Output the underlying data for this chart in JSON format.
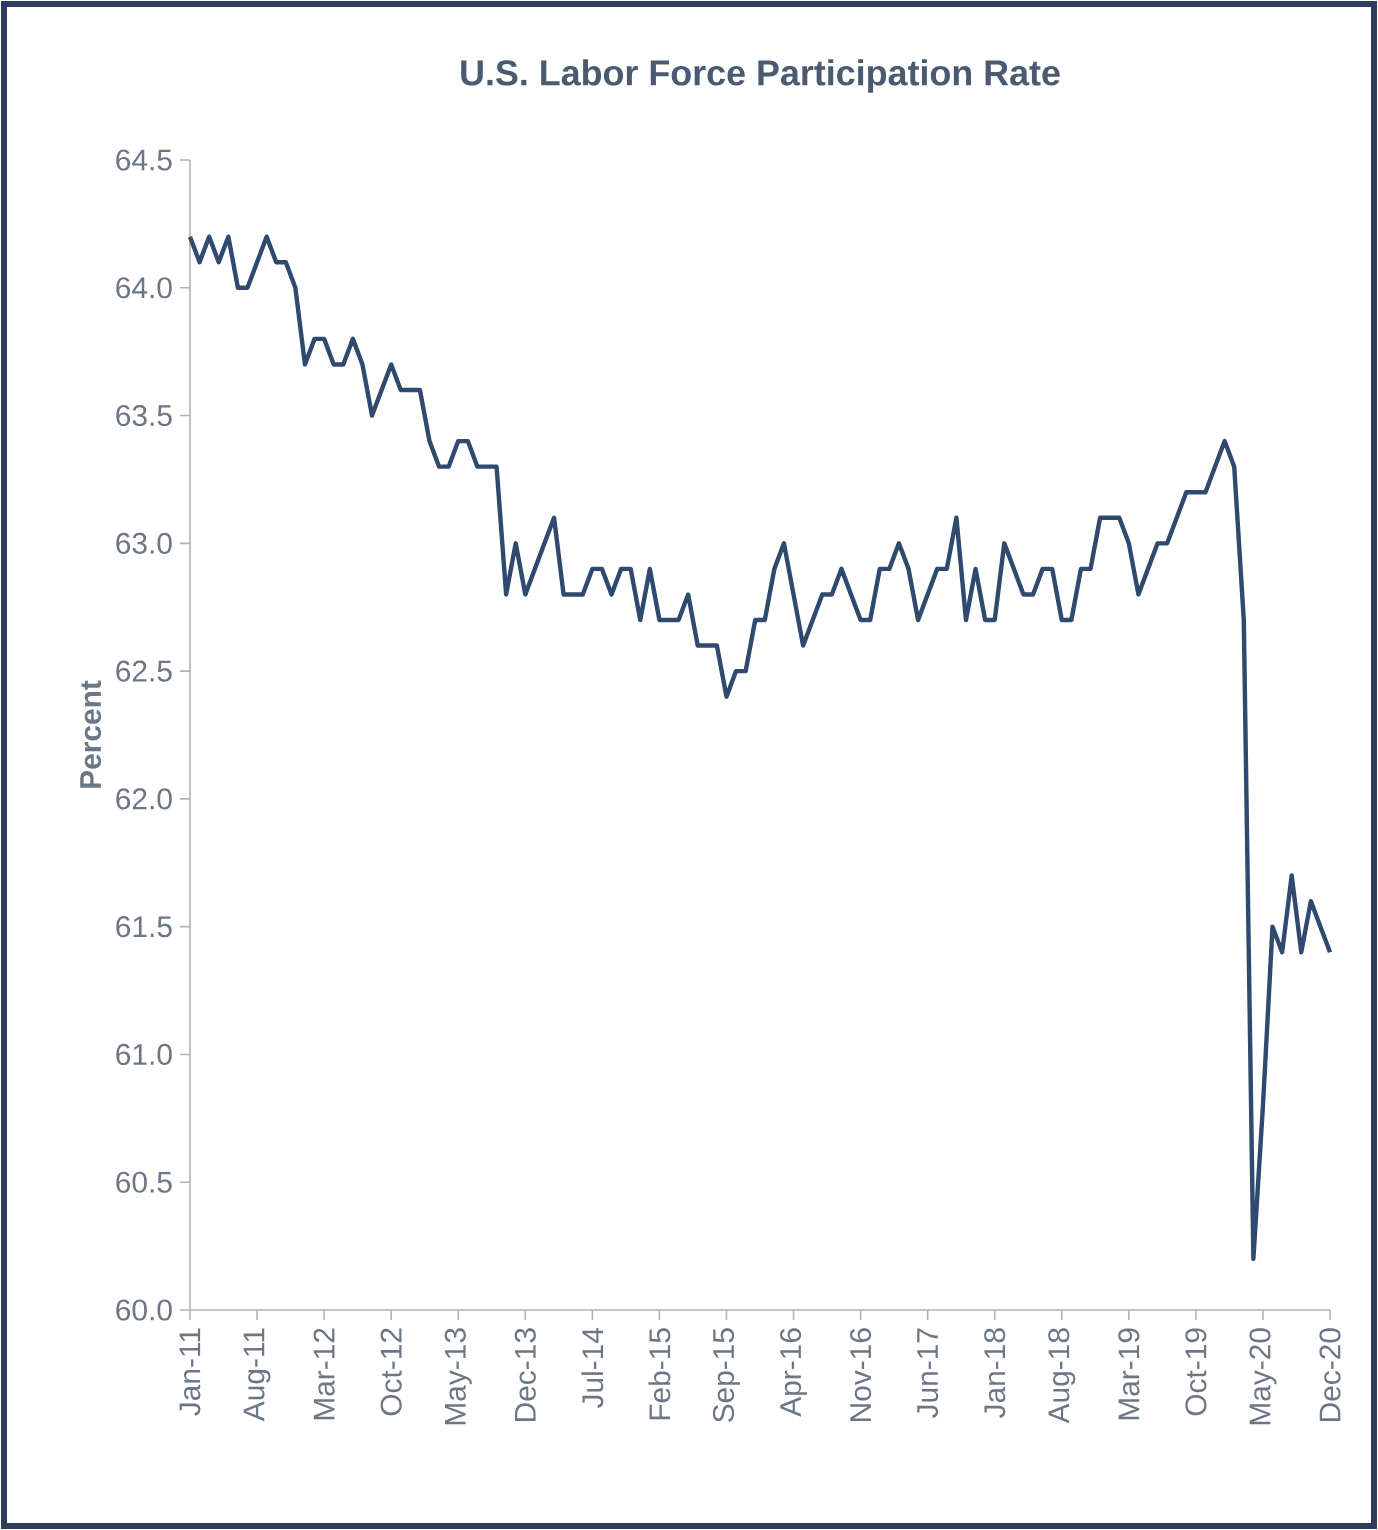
{
  "chart_data": {
    "type": "line",
    "title": "U.S. Labor Force Participation Rate",
    "ylabel": "Percent",
    "x": [
      "2011-01",
      "2011-02",
      "2011-03",
      "2011-04",
      "2011-05",
      "2011-06",
      "2011-07",
      "2011-08",
      "2011-09",
      "2011-10",
      "2011-11",
      "2011-12",
      "2012-01",
      "2012-02",
      "2012-03",
      "2012-04",
      "2012-05",
      "2012-06",
      "2012-07",
      "2012-08",
      "2012-09",
      "2012-10",
      "2012-11",
      "2012-12",
      "2013-01",
      "2013-02",
      "2013-03",
      "2013-04",
      "2013-05",
      "2013-06",
      "2013-07",
      "2013-08",
      "2013-09",
      "2013-10",
      "2013-11",
      "2013-12",
      "2014-01",
      "2014-02",
      "2014-03",
      "2014-04",
      "2014-05",
      "2014-06",
      "2014-07",
      "2014-08",
      "2014-09",
      "2014-10",
      "2014-11",
      "2014-12",
      "2015-01",
      "2015-02",
      "2015-03",
      "2015-04",
      "2015-05",
      "2015-06",
      "2015-07",
      "2015-08",
      "2015-09",
      "2015-10",
      "2015-11",
      "2015-12",
      "2016-01",
      "2016-02",
      "2016-03",
      "2016-04",
      "2016-05",
      "2016-06",
      "2016-07",
      "2016-08",
      "2016-09",
      "2016-10",
      "2016-11",
      "2016-12",
      "2017-01",
      "2017-02",
      "2017-03",
      "2017-04",
      "2017-05",
      "2017-06",
      "2017-07",
      "2017-08",
      "2017-09",
      "2017-10",
      "2017-11",
      "2017-12",
      "2018-01",
      "2018-02",
      "2018-03",
      "2018-04",
      "2018-05",
      "2018-06",
      "2018-07",
      "2018-08",
      "2018-09",
      "2018-10",
      "2018-11",
      "2018-12",
      "2019-01",
      "2019-02",
      "2019-03",
      "2019-04",
      "2019-05",
      "2019-06",
      "2019-07",
      "2019-08",
      "2019-09",
      "2019-10",
      "2019-11",
      "2019-12",
      "2020-01",
      "2020-02",
      "2020-03",
      "2020-04",
      "2020-05",
      "2020-06",
      "2020-07",
      "2020-08",
      "2020-09",
      "2020-10",
      "2020-11",
      "2020-12"
    ],
    "series": [
      {
        "color": "#2f4a6e",
        "values": [
          64.2,
          64.1,
          64.2,
          64.1,
          64.2,
          64.0,
          64.0,
          64.1,
          64.2,
          64.1,
          64.1,
          64.0,
          63.7,
          63.8,
          63.8,
          63.7,
          63.7,
          63.8,
          63.7,
          63.5,
          63.6,
          63.7,
          63.6,
          63.6,
          63.6,
          63.4,
          63.3,
          63.3,
          63.4,
          63.4,
          63.3,
          63.3,
          63.3,
          62.8,
          63.0,
          62.8,
          62.9,
          63.0,
          63.1,
          62.8,
          62.8,
          62.8,
          62.9,
          62.9,
          62.8,
          62.9,
          62.9,
          62.7,
          62.9,
          62.7,
          62.7,
          62.7,
          62.8,
          62.6,
          62.6,
          62.6,
          62.4,
          62.5,
          62.5,
          62.7,
          62.7,
          62.9,
          63.0,
          62.8,
          62.6,
          62.7,
          62.8,
          62.8,
          62.9,
          62.8,
          62.7,
          62.7,
          62.9,
          62.9,
          63.0,
          62.9,
          62.7,
          62.8,
          62.9,
          62.9,
          63.1,
          62.7,
          62.9,
          62.7,
          62.7,
          63.0,
          62.9,
          62.8,
          62.8,
          62.9,
          62.9,
          62.7,
          62.7,
          62.9,
          62.9,
          63.1,
          63.1,
          63.1,
          63.0,
          62.8,
          62.9,
          63.0,
          63.0,
          63.1,
          63.2,
          63.2,
          63.2,
          63.3,
          63.4,
          63.3,
          62.7,
          60.2,
          60.8,
          61.5,
          61.4,
          61.7,
          61.4,
          61.6,
          61.5,
          61.4
        ]
      }
    ],
    "xlim": [
      "2011-01",
      "2020-12"
    ],
    "xticks": [
      {
        "value": "2011-01",
        "label": "Jan-11"
      },
      {
        "value": "2011-08",
        "label": "Aug-11"
      },
      {
        "value": "2012-03",
        "label": "Mar-12"
      },
      {
        "value": "2012-10",
        "label": "Oct-12"
      },
      {
        "value": "2013-05",
        "label": "May-13"
      },
      {
        "value": "2013-12",
        "label": "Dec-13"
      },
      {
        "value": "2014-07",
        "label": "Jul-14"
      },
      {
        "value": "2015-02",
        "label": "Feb-15"
      },
      {
        "value": "2015-09",
        "label": "Sep-15"
      },
      {
        "value": "2016-04",
        "label": "Apr-16"
      },
      {
        "value": "2016-11",
        "label": "Nov-16"
      },
      {
        "value": "2017-06",
        "label": "Jun-17"
      },
      {
        "value": "2018-01",
        "label": "Jan-18"
      },
      {
        "value": "2018-08",
        "label": "Aug-18"
      },
      {
        "value": "2019-03",
        "label": "Mar-19"
      },
      {
        "value": "2019-10",
        "label": "Oct-19"
      },
      {
        "value": "2020-05",
        "label": "May-20"
      },
      {
        "value": "2020-12",
        "label": "Dec-20"
      }
    ],
    "ylim": [
      60.0,
      64.5
    ],
    "yticks": [
      {
        "value": 60,
        "label": "60.0"
      },
      {
        "value": 60.5,
        "label": "60.5"
      },
      {
        "value": 61,
        "label": "61.0"
      },
      {
        "value": 61.5,
        "label": "61.5"
      },
      {
        "value": 62,
        "label": "62.0"
      },
      {
        "value": 62.5,
        "label": "62.5"
      },
      {
        "value": 63,
        "label": "63.0"
      },
      {
        "value": 63.5,
        "label": "63.5"
      },
      {
        "value": 64,
        "label": "64.0"
      },
      {
        "value": 64.5,
        "label": "64.5"
      }
    ],
    "grid": false,
    "legend": false
  }
}
